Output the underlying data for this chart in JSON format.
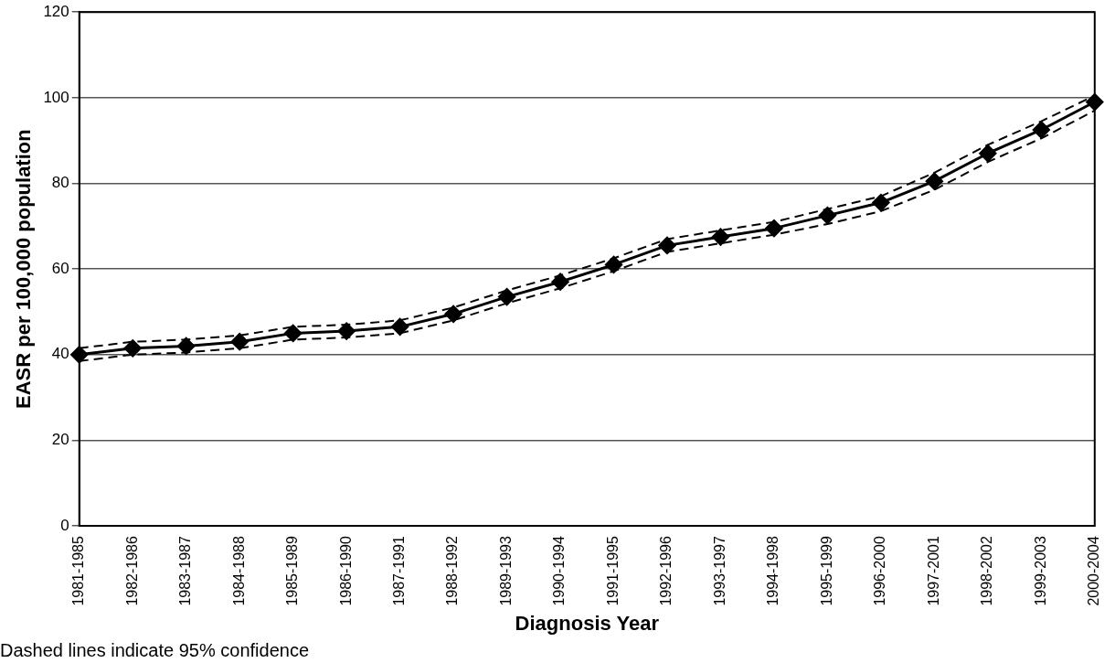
{
  "chart_data": {
    "type": "line",
    "xlabel": "Diagnosis Year",
    "ylabel": "EASR per 100,000 population",
    "categories": [
      "1981-1985",
      "1982-1986",
      "1983-1987",
      "1984-1988",
      "1985-1989",
      "1986-1990",
      "1987-1991",
      "1988-1992",
      "1989-1993",
      "1990-1994",
      "1991-1995",
      "1992-1996",
      "1993-1997",
      "1994-1998",
      "1995-1999",
      "1996-2000",
      "1997-2001",
      "1998-2002",
      "1999-2003",
      "2000-2004"
    ],
    "series": [
      {
        "color": "#000000",
        "values": [
          40,
          41.5,
          42,
          43,
          45,
          45.5,
          46.5,
          49.5,
          53.5,
          57,
          61,
          65.5,
          67.5,
          69.5,
          72.5,
          75.5,
          80.5,
          87,
          92.5,
          99
        ]
      },
      {
        "color": "#000000",
        "marker": "none",
        "line_style": "dashed",
        "values": [
          38.5,
          40,
          40.5,
          41.5,
          43.5,
          44,
          45,
          48,
          52,
          55.5,
          59.5,
          64,
          66,
          68,
          70.5,
          73.5,
          78.5,
          85,
          90.5,
          97
        ]
      },
      {
        "color": "#000000",
        "marker": "none",
        "line_style": "dashed",
        "values": [
          41.5,
          43,
          43.5,
          44.5,
          46.5,
          47,
          48,
          51,
          55,
          58.5,
          62.5,
          67,
          69,
          71,
          74,
          77,
          82.5,
          89,
          94.5,
          100.5
        ]
      }
    ],
    "ylim": [
      0,
      120
    ],
    "yticks": [
      0,
      20,
      40,
      60,
      80,
      100,
      120
    ],
    "grid": "y",
    "legend": false,
    "marker": "diamond",
    "line_style": "solid",
    "annotations": [
      "Dashed lines indicate 95% confidence"
    ]
  }
}
